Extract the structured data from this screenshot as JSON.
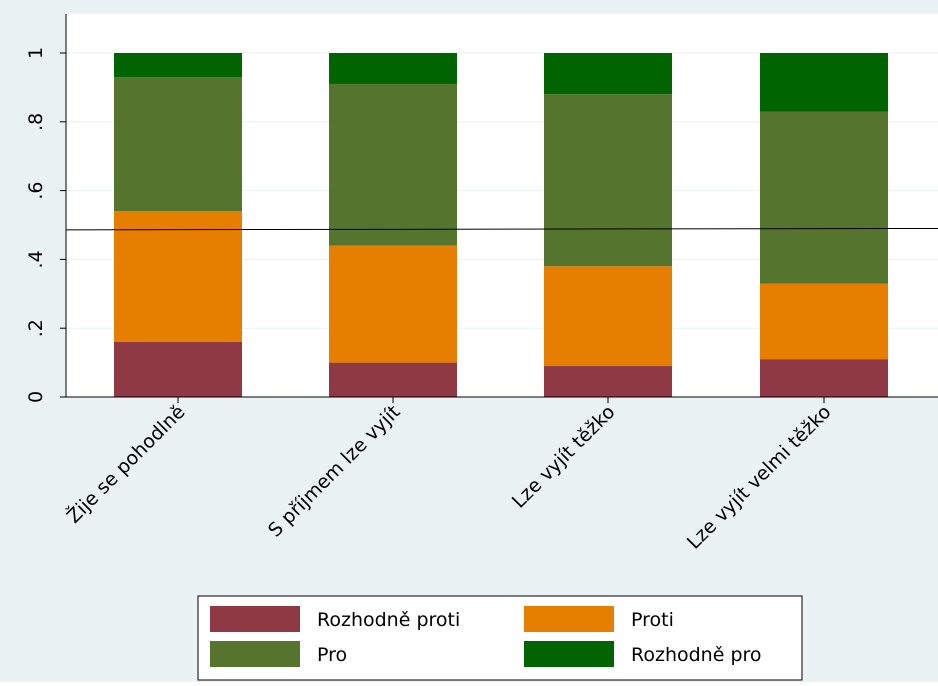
{
  "chart_data": {
    "type": "bar",
    "stacked": true,
    "title": "",
    "xlabel": "",
    "ylabel": "",
    "ylim": [
      0,
      1
    ],
    "yticks": [
      {
        "value": 0,
        "label": "0"
      },
      {
        "value": 0.2,
        "label": ".2"
      },
      {
        "value": 0.4,
        "label": ".4"
      },
      {
        "value": 0.6,
        "label": ".6"
      },
      {
        "value": 0.8,
        "label": ".8"
      },
      {
        "value": 1,
        "label": "1"
      }
    ],
    "categories": [
      "Žije se pohodlně",
      "S příjmem lze vyjít",
      "Lze vyjít těžko",
      "Lze vyjít velmi těžko"
    ],
    "series": [
      {
        "name": "Rozhodně proti",
        "color": "#8f3944",
        "values": [
          0.16,
          0.1,
          0.09,
          0.11
        ]
      },
      {
        "name": "Proti",
        "color": "#e67f00",
        "values": [
          0.38,
          0.34,
          0.29,
          0.22
        ]
      },
      {
        "name": "Pro",
        "color": "#55752f",
        "values": [
          0.39,
          0.47,
          0.5,
          0.5
        ]
      },
      {
        "name": "Rozhodně pro",
        "color": "#006400",
        "values": [
          0.07,
          0.09,
          0.12,
          0.17
        ]
      }
    ],
    "reference_line": {
      "y_start": 0.486,
      "y_end": 0.49,
      "color": "#000000"
    },
    "grid": true,
    "legend": {
      "position": "bottom",
      "columns": 2
    }
  }
}
